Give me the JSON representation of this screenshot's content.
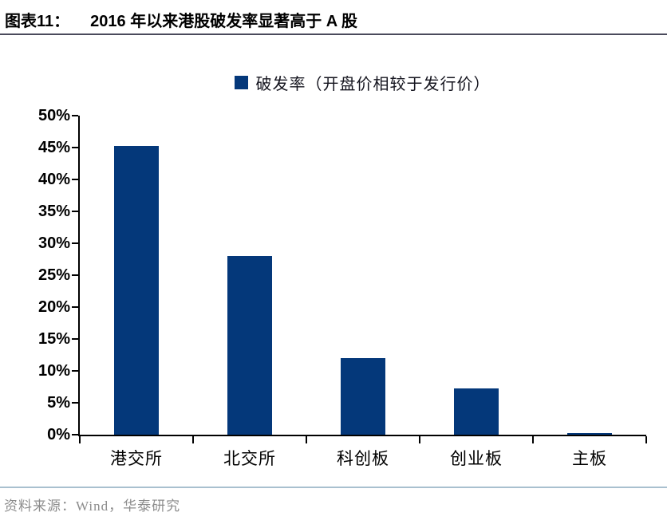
{
  "header": {
    "figure_label": "图表11：",
    "figure_title": "2016 年以来港股破发率显著高于 A 股"
  },
  "legend": {
    "label": "破发率（开盘价相较于发行价）"
  },
  "chart_data": {
    "type": "bar",
    "title": "2016 年以来港股破发率显著高于 A 股",
    "categories": [
      "港交所",
      "北交所",
      "科创板",
      "创业板",
      "主板"
    ],
    "values": [
      45.2,
      28.0,
      12.0,
      7.2,
      0.2
    ],
    "series_name": "破发率（开盘价相较于发行价）",
    "xlabel": "",
    "ylabel": "",
    "ylim": [
      0,
      50
    ],
    "yticks": [
      0,
      5,
      10,
      15,
      20,
      25,
      30,
      35,
      40,
      45,
      50
    ],
    "ytick_suffix": "%",
    "grid": false,
    "legend_position": "top"
  },
  "footer": {
    "source": "资料来源：Wind，华泰研究"
  },
  "colors": {
    "bar": "#04387a",
    "title_rule": "#4a4a5c",
    "footer_rule": "#a9c0cf",
    "footer_text": "#8c8c8c",
    "axis": "#000000"
  }
}
